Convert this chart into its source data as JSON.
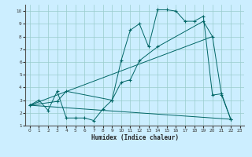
{
  "background_color": "#cceeff",
  "grid_color": "#99cccc",
  "line_color": "#006666",
  "xlim": [
    -0.5,
    23.5
  ],
  "ylim": [
    1,
    10.5
  ],
  "xlabel": "Humidex (Indice chaleur)",
  "xticks": [
    0,
    1,
    2,
    3,
    4,
    5,
    6,
    7,
    8,
    9,
    10,
    11,
    12,
    13,
    14,
    15,
    16,
    17,
    18,
    19,
    20,
    21,
    22,
    23
  ],
  "yticks": [
    1,
    2,
    3,
    4,
    5,
    6,
    7,
    8,
    9,
    10
  ],
  "line1_x": [
    0,
    1,
    2,
    3,
    4,
    5,
    6,
    7,
    8,
    9,
    10,
    11,
    12,
    13,
    14,
    15,
    16,
    17,
    18,
    19,
    20,
    21,
    22
  ],
  "line1_y": [
    2.6,
    3.0,
    2.2,
    3.7,
    1.6,
    1.6,
    1.6,
    1.4,
    2.3,
    3.0,
    6.1,
    8.5,
    9.0,
    7.2,
    10.1,
    10.1,
    10.0,
    9.2,
    9.2,
    9.6,
    3.4,
    3.5,
    1.5
  ],
  "line2_x": [
    0,
    3,
    4,
    9,
    10,
    11,
    12,
    14,
    19,
    20,
    21,
    22
  ],
  "line2_y": [
    2.6,
    2.9,
    3.7,
    3.0,
    4.4,
    4.6,
    6.1,
    7.2,
    9.2,
    8.0,
    3.4,
    1.5
  ],
  "line3_x": [
    0,
    22
  ],
  "line3_y": [
    2.6,
    1.5
  ],
  "line4_x": [
    0,
    20
  ],
  "line4_y": [
    2.6,
    8.0
  ]
}
